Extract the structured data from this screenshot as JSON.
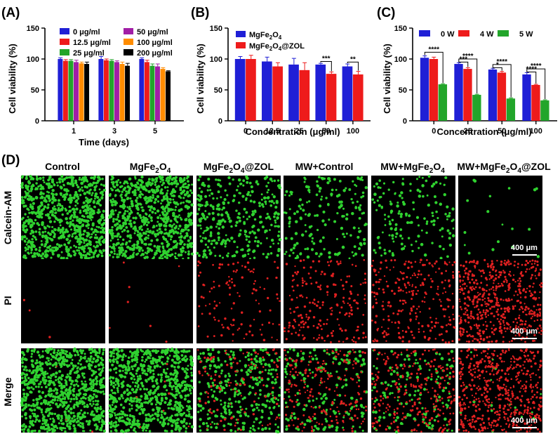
{
  "panels": {
    "a": "(A)",
    "b": "(B)",
    "c": "(C)",
    "d": "(D)"
  },
  "colors": {
    "blue": "#1f1fd6",
    "red": "#ee1b1b",
    "green": "#22a52a",
    "purple": "#a11ea6",
    "orange": "#ff8c00",
    "black": "#000000",
    "live_cells": "#2fd22f",
    "dead_cells": "#e02020"
  },
  "chart_data": [
    {
      "id": "A",
      "type": "bar",
      "xlabel": "Time (days)",
      "ylabel": "Cell viability (%)",
      "ylim": [
        0,
        150
      ],
      "yticks": [
        0,
        50,
        100,
        150
      ],
      "categories": [
        "1",
        "3",
        "5"
      ],
      "legend": "top-inside, two columns",
      "series": [
        {
          "name": "0 μg/ml",
          "color": "#1f1fd6",
          "values": [
            100,
            100,
            100
          ],
          "errors": [
            2,
            4,
            2
          ]
        },
        {
          "name": "12.5 μg/ml",
          "color": "#ee1b1b",
          "values": [
            97,
            98,
            95
          ],
          "errors": [
            2,
            2,
            3
          ]
        },
        {
          "name": "25 μg/ml",
          "color": "#22a52a",
          "values": [
            97,
            97,
            89
          ],
          "errors": [
            2,
            2,
            3
          ]
        },
        {
          "name": "50 μg/ml",
          "color": "#a11ea6",
          "values": [
            95,
            95,
            88
          ],
          "errors": [
            3,
            2,
            4
          ]
        },
        {
          "name": "100 μg/ml",
          "color": "#ff8c00",
          "values": [
            93,
            92,
            84
          ],
          "errors": [
            2,
            3,
            2
          ]
        },
        {
          "name": "200 μg/ml",
          "color": "#000000",
          "values": [
            92,
            89,
            80
          ],
          "errors": [
            3,
            4,
            1
          ]
        }
      ]
    },
    {
      "id": "B",
      "type": "bar",
      "xlabel": "Concentration (μg/ml)",
      "ylabel": "Cell viability (%)",
      "ylim": [
        0,
        150
      ],
      "yticks": [
        0,
        50,
        100,
        150
      ],
      "categories": [
        "0",
        "12.5",
        "25",
        "50",
        "100"
      ],
      "legend": "top-left",
      "series": [
        {
          "name": "MgFe2O4",
          "color": "#1f1fd6",
          "values": [
            100,
            96,
            91,
            91,
            88
          ],
          "errors": [
            4,
            7,
            10,
            2,
            4
          ]
        },
        {
          "name": "MgFe2O4@ZOL",
          "color": "#ee1b1b",
          "values": [
            100,
            88,
            82,
            76,
            75
          ],
          "errors": [
            6,
            6,
            12,
            3,
            5
          ]
        }
      ],
      "annotations": [
        {
          "category": "50",
          "text": "***"
        },
        {
          "category": "100",
          "text": "**"
        }
      ]
    },
    {
      "id": "C",
      "type": "bar",
      "xlabel": "Concentration (μg/ml)",
      "ylabel": "Cell viability (%)",
      "ylim": [
        0,
        150
      ],
      "yticks": [
        0,
        50,
        100,
        150
      ],
      "categories": [
        "0",
        "25",
        "50",
        "100"
      ],
      "legend": "top, one row",
      "series": [
        {
          "name": "0 W",
          "color": "#1f1fd6",
          "values": [
            102,
            92,
            83,
            75
          ],
          "errors": [
            3,
            2,
            2,
            3
          ]
        },
        {
          "name": "4 W",
          "color": "#ee1b1b",
          "values": [
            100,
            84,
            78,
            58
          ],
          "errors": [
            3,
            2,
            2,
            1
          ]
        },
        {
          "name": "5 W",
          "color": "#22a52a",
          "values": [
            59,
            42,
            36,
            33
          ],
          "errors": [
            1,
            1,
            1,
            1
          ]
        }
      ],
      "annotations": [
        {
          "category": "0",
          "text": "****"
        },
        {
          "category": "25",
          "text": "****"
        },
        {
          "category": "25",
          "text": "***"
        },
        {
          "category": "50",
          "text": "****"
        },
        {
          "category": "50",
          "text": "*"
        },
        {
          "category": "100",
          "text": "****"
        },
        {
          "category": "100",
          "text": "****"
        }
      ]
    }
  ],
  "microscopy": {
    "columns": [
      "Control",
      "MgFe2O4",
      "MgFe2O4@ZOL",
      "MW+Control",
      "MW+MgFe2O4",
      "MW+MgFe2O4@ZOL"
    ],
    "rows": [
      "Calcein-AM",
      "PI",
      "Merge"
    ],
    "scale_bar": "400 μm",
    "live_density": [
      0.9,
      0.85,
      0.35,
      0.2,
      0.17,
      0.02
    ],
    "dead_density": [
      0.004,
      0.01,
      0.16,
      0.3,
      0.38,
      0.78
    ]
  }
}
